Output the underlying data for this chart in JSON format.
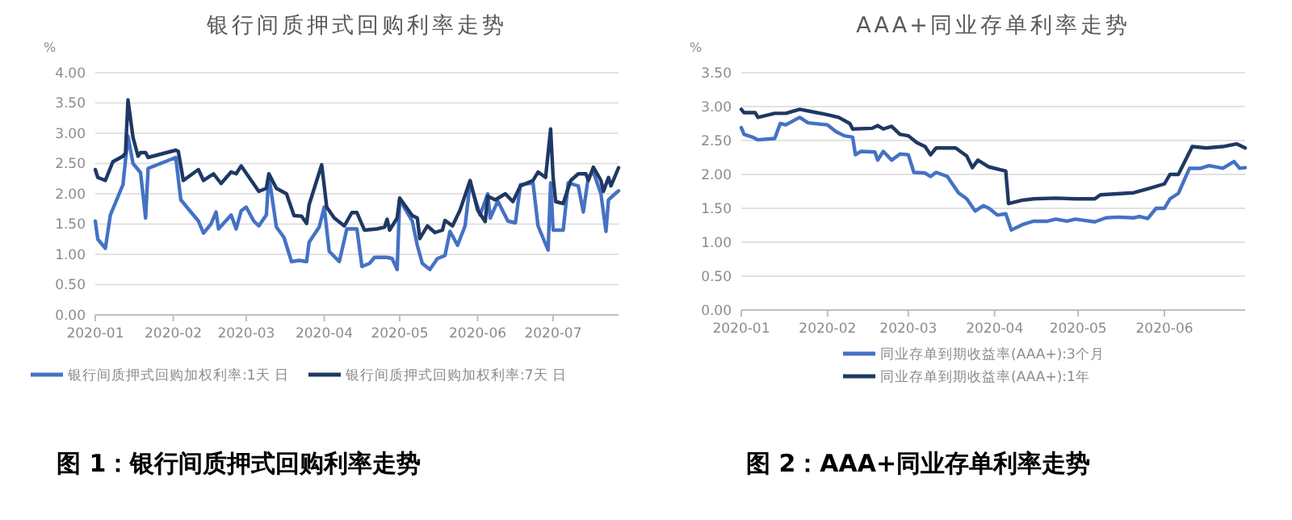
{
  "chart_data": [
    {
      "type": "line",
      "title": "银行间质押式回购利率走势",
      "ylabel": "%",
      "legend": "bottom",
      "grid": "y",
      "line_style": "solid",
      "marker": "none",
      "annotations": [
        "图 1：银行间质押式回购利率走势"
      ],
      "xlim": [
        "2020-01-01",
        "2020-07-27"
      ],
      "xticks": [
        "2020-01",
        "2020-02",
        "2020-03",
        "2020-04",
        "2020-05",
        "2020-06",
        "2020-07"
      ],
      "ylim": [
        0,
        4
      ],
      "yticks": [
        {
          "value": 0,
          "label": "0.00"
        },
        {
          "value": 0.5,
          "label": "0.50"
        },
        {
          "value": 1,
          "label": "1.00"
        },
        {
          "value": 1.5,
          "label": "1.50"
        },
        {
          "value": 2,
          "label": "2.00"
        },
        {
          "value": 2.5,
          "label": "2.50"
        },
        {
          "value": 3,
          "label": "3.00"
        },
        {
          "value": 3.5,
          "label": "3.50"
        },
        {
          "value": 4,
          "label": "4.00"
        }
      ],
      "series": [
        {
          "name": "银行间质押式回购加权利率:1天 日",
          "color": "#4472c4",
          "x": [
            "2020-01-01",
            "2020-01-02",
            "2020-01-05",
            "2020-01-07",
            "2020-01-12",
            "2020-01-14",
            "2020-01-16",
            "2020-01-19",
            "2020-01-21",
            "2020-01-22",
            "2020-02-02",
            "2020-02-04",
            "2020-02-08",
            "2020-02-11",
            "2020-02-13",
            "2020-02-16",
            "2020-02-18",
            "2020-02-19",
            "2020-02-24",
            "2020-02-26",
            "2020-02-28",
            "2020-03-01",
            "2020-03-04",
            "2020-03-06",
            "2020-03-09",
            "2020-03-10",
            "2020-03-13",
            "2020-03-16",
            "2020-03-19",
            "2020-03-22",
            "2020-03-25",
            "2020-03-26",
            "2020-03-30",
            "2020-04-01",
            "2020-04-03",
            "2020-04-07",
            "2020-04-10",
            "2020-04-14",
            "2020-04-16",
            "2020-04-19",
            "2020-04-21",
            "2020-04-26",
            "2020-04-28",
            "2020-04-30",
            "2020-05-01",
            "2020-05-06",
            "2020-05-08",
            "2020-05-10",
            "2020-05-13",
            "2020-05-16",
            "2020-05-19",
            "2020-05-21",
            "2020-05-24",
            "2020-05-27",
            "2020-05-29",
            "2020-06-02",
            "2020-06-05",
            "2020-06-06",
            "2020-06-09",
            "2020-06-13",
            "2020-06-16",
            "2020-06-18",
            "2020-06-23",
            "2020-06-25",
            "2020-06-29",
            "2020-06-30",
            "2020-07-01",
            "2020-07-05",
            "2020-07-07",
            "2020-07-11",
            "2020-07-13",
            "2020-07-15",
            "2020-07-17",
            "2020-07-20",
            "2020-07-22",
            "2020-07-23",
            "2020-07-27"
          ],
          "values": [
            1.55,
            1.25,
            1.1,
            1.65,
            2.15,
            2.95,
            2.5,
            2.35,
            1.6,
            2.42,
            2.6,
            1.9,
            1.7,
            1.55,
            1.35,
            1.5,
            1.7,
            1.42,
            1.65,
            1.42,
            1.72,
            1.78,
            1.55,
            1.47,
            1.65,
            2.3,
            1.45,
            1.28,
            0.88,
            0.9,
            0.88,
            1.2,
            1.45,
            1.78,
            1.05,
            0.88,
            1.42,
            1.42,
            0.8,
            0.85,
            0.95,
            0.95,
            0.93,
            0.75,
            1.9,
            1.55,
            1.15,
            0.85,
            0.75,
            0.93,
            0.98,
            1.38,
            1.15,
            1.47,
            2.18,
            1.65,
            2.0,
            1.6,
            1.88,
            1.55,
            1.52,
            2.15,
            2.18,
            1.47,
            1.07,
            2.18,
            1.4,
            1.4,
            2.18,
            2.13,
            1.7,
            2.28,
            2.36,
            2.0,
            1.38,
            1.9,
            2.05
          ]
        },
        {
          "name": "银行间质押式回购加权利率:7天 日",
          "color": "#1f3864",
          "x": [
            "2020-01-01",
            "2020-01-02",
            "2020-01-05",
            "2020-01-08",
            "2020-01-12",
            "2020-01-13",
            "2020-01-14",
            "2020-01-16",
            "2020-01-18",
            "2020-01-19",
            "2020-01-21",
            "2020-01-22",
            "2020-02-02",
            "2020-02-03",
            "2020-02-05",
            "2020-02-08",
            "2020-02-11",
            "2020-02-13",
            "2020-02-17",
            "2020-02-20",
            "2020-02-24",
            "2020-02-26",
            "2020-02-28",
            "2020-03-06",
            "2020-03-09",
            "2020-03-10",
            "2020-03-13",
            "2020-03-17",
            "2020-03-20",
            "2020-03-23",
            "2020-03-25",
            "2020-03-26",
            "2020-03-31",
            "2020-04-02",
            "2020-04-05",
            "2020-04-09",
            "2020-04-12",
            "2020-04-14",
            "2020-04-17",
            "2020-04-22",
            "2020-04-25",
            "2020-04-26",
            "2020-04-27",
            "2020-04-30",
            "2020-05-01",
            "2020-05-06",
            "2020-05-08",
            "2020-05-09",
            "2020-05-12",
            "2020-05-15",
            "2020-05-18",
            "2020-05-19",
            "2020-05-22",
            "2020-05-25",
            "2020-05-29",
            "2020-06-01",
            "2020-06-04",
            "2020-06-05",
            "2020-06-08",
            "2020-06-12",
            "2020-06-15",
            "2020-06-18",
            "2020-06-23",
            "2020-06-25",
            "2020-06-28",
            "2020-06-30",
            "2020-07-01",
            "2020-07-02",
            "2020-07-05",
            "2020-07-08",
            "2020-07-11",
            "2020-07-14",
            "2020-07-15",
            "2020-07-17",
            "2020-07-20",
            "2020-07-21",
            "2020-07-23",
            "2020-07-24",
            "2020-07-27"
          ],
          "values": [
            2.4,
            2.27,
            2.22,
            2.53,
            2.62,
            2.67,
            3.55,
            2.93,
            2.62,
            2.68,
            2.68,
            2.6,
            2.72,
            2.7,
            2.22,
            2.31,
            2.4,
            2.22,
            2.33,
            2.17,
            2.36,
            2.33,
            2.46,
            2.04,
            2.09,
            2.33,
            2.09,
            2.0,
            1.64,
            1.63,
            1.51,
            1.82,
            2.48,
            1.78,
            1.6,
            1.47,
            1.69,
            1.69,
            1.4,
            1.42,
            1.45,
            1.58,
            1.4,
            1.6,
            1.93,
            1.64,
            1.6,
            1.26,
            1.47,
            1.36,
            1.4,
            1.56,
            1.47,
            1.73,
            2.22,
            1.73,
            1.54,
            1.96,
            1.9,
            2.0,
            1.87,
            2.13,
            2.22,
            2.36,
            2.27,
            3.07,
            2.27,
            1.87,
            1.84,
            2.22,
            2.33,
            2.33,
            2.22,
            2.44,
            2.22,
            2.04,
            2.27,
            2.13,
            2.43
          ]
        }
      ]
    },
    {
      "type": "line",
      "title": "AAA+同业存单利率走势",
      "ylabel": "%",
      "legend": "bottom",
      "grid": "y",
      "line_style": "solid",
      "marker": "none",
      "annotations": [
        "图 2：AAA+同业存单利率走势"
      ],
      "xlim": [
        "2020-01-01",
        "2020-06-30"
      ],
      "xticks": [
        "2020-01",
        "2020-02",
        "2020-03",
        "2020-04",
        "2020-05",
        "2020-06"
      ],
      "ylim": [
        0,
        3.5
      ],
      "yticks": [
        {
          "value": 0,
          "label": "0.00"
        },
        {
          "value": 0.5,
          "label": "0.50"
        },
        {
          "value": 1,
          "label": "1.00"
        },
        {
          "value": 1.5,
          "label": "1.50"
        },
        {
          "value": 2,
          "label": "2.00"
        },
        {
          "value": 2.5,
          "label": "2.50"
        },
        {
          "value": 3,
          "label": "3.00"
        },
        {
          "value": 3.5,
          "label": "3.50"
        }
      ],
      "series": [
        {
          "name": "同业存单到期收益率(AAA+):3个月",
          "color": "#4472c4",
          "x": [
            "2020-01-01",
            "2020-01-02",
            "2020-01-05",
            "2020-01-07",
            "2020-01-13",
            "2020-01-15",
            "2020-01-17",
            "2020-01-21",
            "2020-01-22",
            "2020-01-25",
            "2020-02-01",
            "2020-02-04",
            "2020-02-07",
            "2020-02-10",
            "2020-02-11",
            "2020-02-13",
            "2020-02-18",
            "2020-02-19",
            "2020-02-21",
            "2020-02-24",
            "2020-02-27",
            "2020-03-01",
            "2020-03-03",
            "2020-03-07",
            "2020-03-09",
            "2020-03-11",
            "2020-03-15",
            "2020-03-19",
            "2020-03-22",
            "2020-03-25",
            "2020-03-28",
            "2020-03-30",
            "2020-04-02",
            "2020-04-05",
            "2020-04-07",
            "2020-04-11",
            "2020-04-15",
            "2020-04-20",
            "2020-04-23",
            "2020-04-27",
            "2020-04-30",
            "2020-05-07",
            "2020-05-11",
            "2020-05-15",
            "2020-05-21",
            "2020-05-23",
            "2020-05-26",
            "2020-05-29",
            "2020-06-01",
            "2020-06-03",
            "2020-06-06",
            "2020-06-10",
            "2020-06-14",
            "2020-06-17",
            "2020-06-22",
            "2020-06-26",
            "2020-06-28",
            "2020-06-30"
          ],
          "values": [
            2.69,
            2.59,
            2.55,
            2.51,
            2.53,
            2.75,
            2.73,
            2.82,
            2.84,
            2.76,
            2.73,
            2.63,
            2.57,
            2.55,
            2.29,
            2.34,
            2.33,
            2.21,
            2.34,
            2.21,
            2.3,
            2.29,
            2.03,
            2.02,
            1.97,
            2.03,
            1.97,
            1.73,
            1.64,
            1.46,
            1.54,
            1.5,
            1.4,
            1.42,
            1.18,
            1.26,
            1.31,
            1.31,
            1.34,
            1.31,
            1.34,
            1.3,
            1.36,
            1.37,
            1.36,
            1.38,
            1.35,
            1.5,
            1.5,
            1.64,
            1.72,
            2.09,
            2.09,
            2.13,
            2.09,
            2.19,
            2.09,
            2.1
          ]
        },
        {
          "name": "同业存单到期收益率(AAA+):1年",
          "color": "#1f3864",
          "x": [
            "2020-01-01",
            "2020-01-02",
            "2020-01-06",
            "2020-01-07",
            "2020-01-13",
            "2020-01-17",
            "2020-01-22",
            "2020-01-27",
            "2020-02-01",
            "2020-02-05",
            "2020-02-09",
            "2020-02-10",
            "2020-02-17",
            "2020-02-19",
            "2020-02-21",
            "2020-02-24",
            "2020-02-27",
            "2020-03-01",
            "2020-03-04",
            "2020-03-07",
            "2020-03-09",
            "2020-03-11",
            "2020-03-18",
            "2020-03-22",
            "2020-03-24",
            "2020-03-26",
            "2020-03-30",
            "2020-04-05",
            "2020-04-06",
            "2020-04-11",
            "2020-04-15",
            "2020-04-23",
            "2020-04-30",
            "2020-05-07",
            "2020-05-09",
            "2020-05-21",
            "2020-05-27",
            "2020-06-01",
            "2020-06-03",
            "2020-06-06",
            "2020-06-11",
            "2020-06-16",
            "2020-06-22",
            "2020-06-27",
            "2020-06-30"
          ],
          "values": [
            2.96,
            2.91,
            2.91,
            2.84,
            2.9,
            2.9,
            2.96,
            2.92,
            2.88,
            2.84,
            2.75,
            2.67,
            2.68,
            2.72,
            2.67,
            2.71,
            2.59,
            2.57,
            2.47,
            2.41,
            2.29,
            2.39,
            2.39,
            2.27,
            2.1,
            2.21,
            2.11,
            2.05,
            1.57,
            1.62,
            1.64,
            1.65,
            1.64,
            1.64,
            1.7,
            1.73,
            1.8,
            1.86,
            2.0,
            2.0,
            2.41,
            2.39,
            2.41,
            2.45,
            2.39
          ]
        }
      ]
    }
  ]
}
